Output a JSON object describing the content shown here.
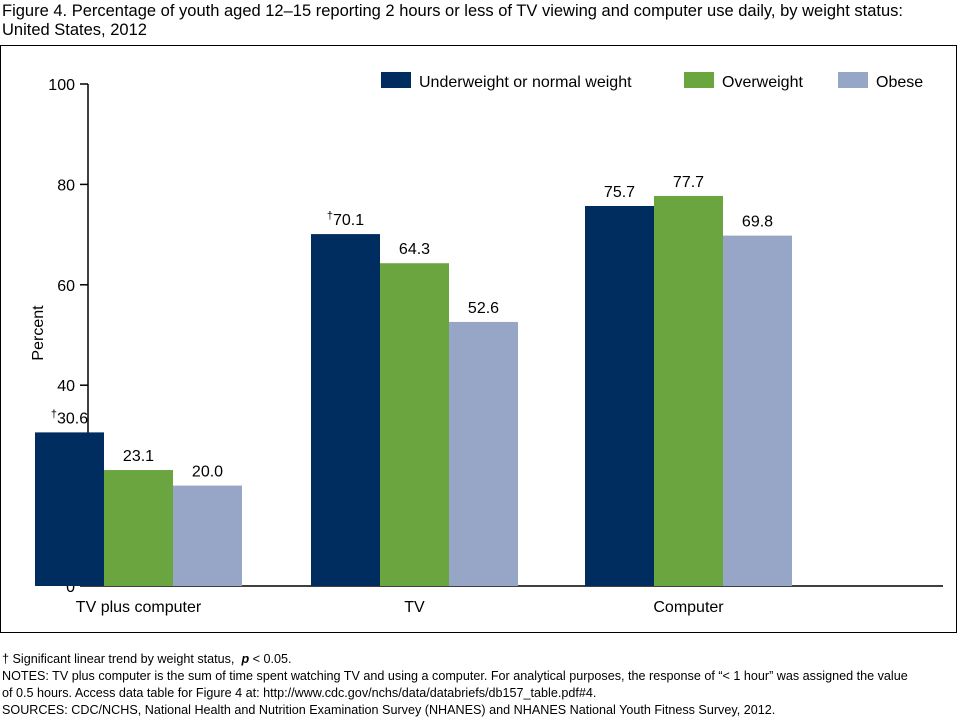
{
  "figure": {
    "title": "Figure 4. Percentage of youth aged 12–15 reporting 2 hours or less of TV viewing and computer use daily, by weight status: United States, 2012"
  },
  "chart_data": {
    "type": "bar",
    "title": "",
    "xlabel": "",
    "ylabel": "Percent",
    "ylim": [
      0,
      100
    ],
    "yticks": [
      0,
      20,
      40,
      60,
      80,
      100
    ],
    "grid": false,
    "legend_position": "top-right",
    "categories": [
      "TV plus computer",
      "TV",
      "Computer"
    ],
    "series": [
      {
        "name": "Underweight or normal weight",
        "color": "#002d5f",
        "values": [
          30.6,
          70.1,
          75.7
        ],
        "labels": [
          "30.6",
          "70.1",
          "75.7"
        ],
        "label_marks": [
          "†",
          "†",
          ""
        ]
      },
      {
        "name": "Overweight",
        "color": "#6aa53f",
        "values": [
          23.1,
          64.3,
          77.7
        ],
        "labels": [
          "23.1",
          "64.3",
          "77.7"
        ],
        "label_marks": [
          "",
          "",
          ""
        ]
      },
      {
        "name": "Obese",
        "color": "#97a6c7",
        "values": [
          20.0,
          52.6,
          69.8
        ],
        "labels": [
          "20.0",
          "52.6",
          "69.8"
        ],
        "label_marks": [
          "",
          "",
          ""
        ]
      }
    ]
  },
  "footnotes": {
    "trend_mark": "†",
    "trend_text": "Significant linear trend by weight status,",
    "trend_p": "p",
    "trend_p_rest": "< 0.05.",
    "notes_line1": "NOTES: TV plus computer is the sum of time spent watching TV and using a computer. For analytical purposes, the response of “< 1 hour” was assigned the value",
    "notes_line2": "of 0.5 hours. Access data table for Figure 4 at: http://www.cdc.gov/nchs/data/databriefs/db157_table.pdf#4.",
    "sources": "SOURCES: CDC/NCHS, National Health and Nutrition Examination Survey (NHANES) and NHANES National Youth Fitness Survey, 2012."
  }
}
